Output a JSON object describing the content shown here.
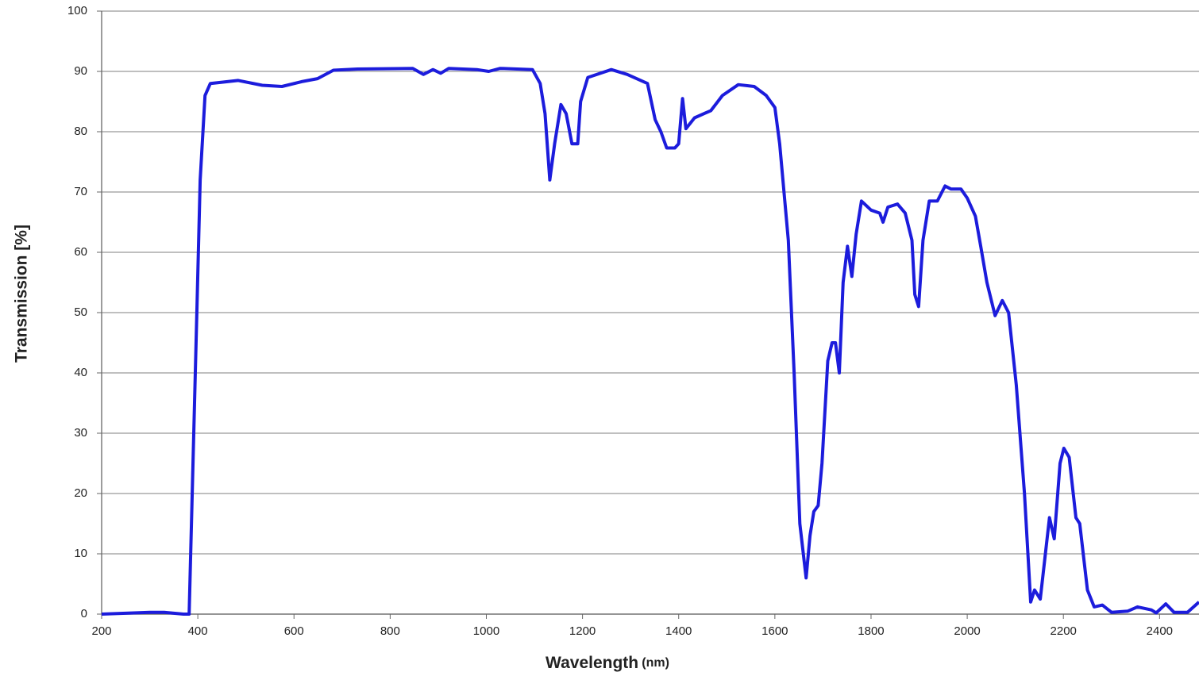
{
  "chart_data": {
    "type": "line",
    "y_label": "Transmission  [%]",
    "x_label": "Wavelength",
    "x_label_unit": "(nm)",
    "color": "#1c1cdc",
    "grid": true,
    "xlim": [
      200,
      2482
    ],
    "ylim": [
      0,
      100
    ],
    "xticks": [
      200,
      400,
      600,
      800,
      1000,
      1200,
      1400,
      1600,
      1800,
      2000,
      2200,
      2400
    ],
    "yticks": [
      0,
      10,
      20,
      30,
      40,
      50,
      60,
      70,
      80,
      90,
      100
    ],
    "x": [
      200,
      300,
      330,
      370,
      382,
      398,
      405,
      415,
      426,
      484,
      534,
      575,
      616,
      649,
      682,
      732,
      847,
      869,
      889,
      905,
      922,
      980,
      1005,
      1029,
      1096,
      1112,
      1122,
      1132,
      1142,
      1155,
      1166,
      1178,
      1190,
      1196,
      1211,
      1260,
      1293,
      1335,
      1351,
      1363,
      1375,
      1392,
      1400,
      1408,
      1415,
      1433,
      1467,
      1491,
      1524,
      1557,
      1582,
      1600,
      1610,
      1628,
      1640,
      1652,
      1665,
      1673,
      1681,
      1690,
      1698,
      1710,
      1719,
      1726,
      1734,
      1742,
      1751,
      1760,
      1769,
      1780,
      1800,
      1818,
      1825,
      1835,
      1855,
      1871,
      1885,
      1891,
      1899,
      1908,
      1921,
      1938,
      1954,
      1966,
      1987,
      2000,
      2017,
      2028,
      2041,
      2058,
      2073,
      2086,
      2102,
      2119,
      2132,
      2140,
      2152,
      2171,
      2181,
      2193,
      2201,
      2212,
      2226,
      2234,
      2250,
      2264,
      2281,
      2300,
      2334,
      2354,
      2383,
      2393,
      2413,
      2430,
      2458,
      2482
    ],
    "values": [
      0,
      0.3,
      0.3,
      0,
      0,
      50,
      72,
      86,
      88,
      88.5,
      87.7,
      87.5,
      88.3,
      88.8,
      90.2,
      90.4,
      90.5,
      89.5,
      90.3,
      89.7,
      90.5,
      90.3,
      90,
      90.5,
      90.3,
      88,
      83,
      72,
      78,
      84.5,
      83,
      78,
      78,
      85,
      89,
      90.3,
      89.5,
      88,
      82,
      80,
      77.3,
      77.3,
      78,
      85.5,
      80.5,
      82.3,
      83.5,
      86,
      87.8,
      87.5,
      86,
      84,
      78,
      62,
      40,
      15,
      6,
      13,
      17,
      18,
      25,
      42,
      45,
      45,
      40,
      55,
      61,
      56,
      63,
      68.5,
      67,
      66.5,
      65,
      67.5,
      68,
      66.5,
      62,
      53,
      51,
      62,
      68.5,
      68.5,
      71,
      70.5,
      70.5,
      69,
      66,
      61,
      55,
      49.5,
      52,
      50,
      38,
      20,
      2,
      4,
      2.5,
      16,
      12.5,
      25,
      27.5,
      26,
      16,
      15,
      4,
      1.2,
      1.5,
      0.3,
      0.5,
      1.2,
      0.7,
      0.2,
      1.7,
      0.3,
      0.3,
      2
    ]
  }
}
